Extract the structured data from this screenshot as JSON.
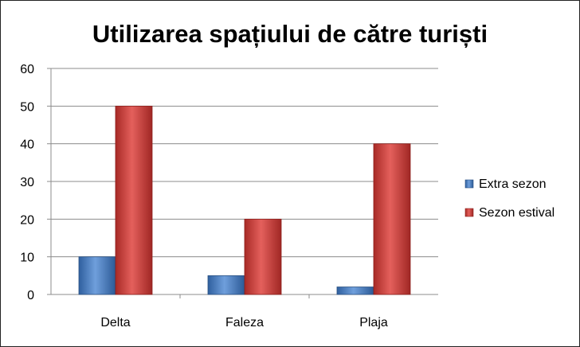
{
  "chart_data": {
    "type": "bar",
    "title": "Utilizarea spațiului de către turiști",
    "categories": [
      "Delta",
      "Faleza",
      "Plaja"
    ],
    "series": [
      {
        "name": "Extra sezon",
        "values": [
          10,
          5,
          2
        ],
        "color": "#4a7ebb"
      },
      {
        "name": "Sezon estival",
        "values": [
          50,
          20,
          40
        ],
        "color": "#c0504d"
      }
    ],
    "ylim": [
      0,
      60
    ],
    "yticks": [
      "0",
      "10",
      "20",
      "30",
      "40",
      "50",
      "60"
    ],
    "grid": true,
    "legend_position": "right"
  }
}
